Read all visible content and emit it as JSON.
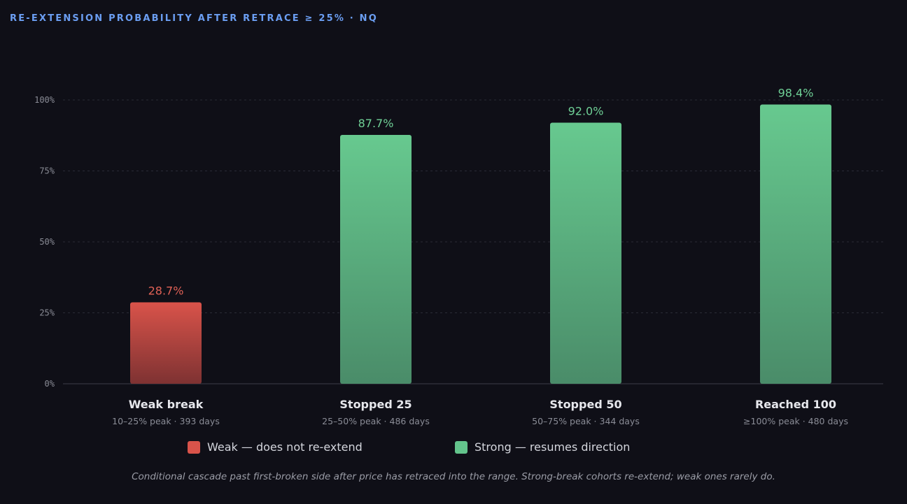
{
  "title": "RE-EXTENSION PROBABILITY AFTER RETRACE ≥ 25% · NQ",
  "colors": {
    "weak": "#d9534a",
    "strong": "#63c48c",
    "background": "#0f0f17",
    "title": "#6b9ef2"
  },
  "chart_data": {
    "type": "bar",
    "categories": [
      "Weak break",
      "Stopped 25",
      "Stopped 50",
      "Reached 100"
    ],
    "subtitles": [
      "10–25% peak · 393 days",
      "25–50% peak · 486 days",
      "50–75% peak · 344 days",
      "≥100% peak · 480 days"
    ],
    "values": [
      28.7,
      87.7,
      92.0,
      98.4
    ],
    "value_labels": [
      "28.7%",
      "87.7%",
      "92.0%",
      "98.4%"
    ],
    "groups": [
      "weak",
      "strong",
      "strong",
      "strong"
    ],
    "ylim": [
      0,
      100
    ],
    "yticks": [
      0,
      25,
      50,
      75,
      100
    ],
    "ytick_labels": [
      "0%",
      "25%",
      "50%",
      "75%",
      "100%"
    ],
    "grid": true
  },
  "legend": [
    {
      "key": "weak",
      "label": "Weak — does not re-extend"
    },
    {
      "key": "strong",
      "label": "Strong — resumes direction"
    }
  ],
  "footnote": "Conditional cascade past first-broken side after price has retraced into the range. Strong-break cohorts re-extend; weak ones rarely do."
}
